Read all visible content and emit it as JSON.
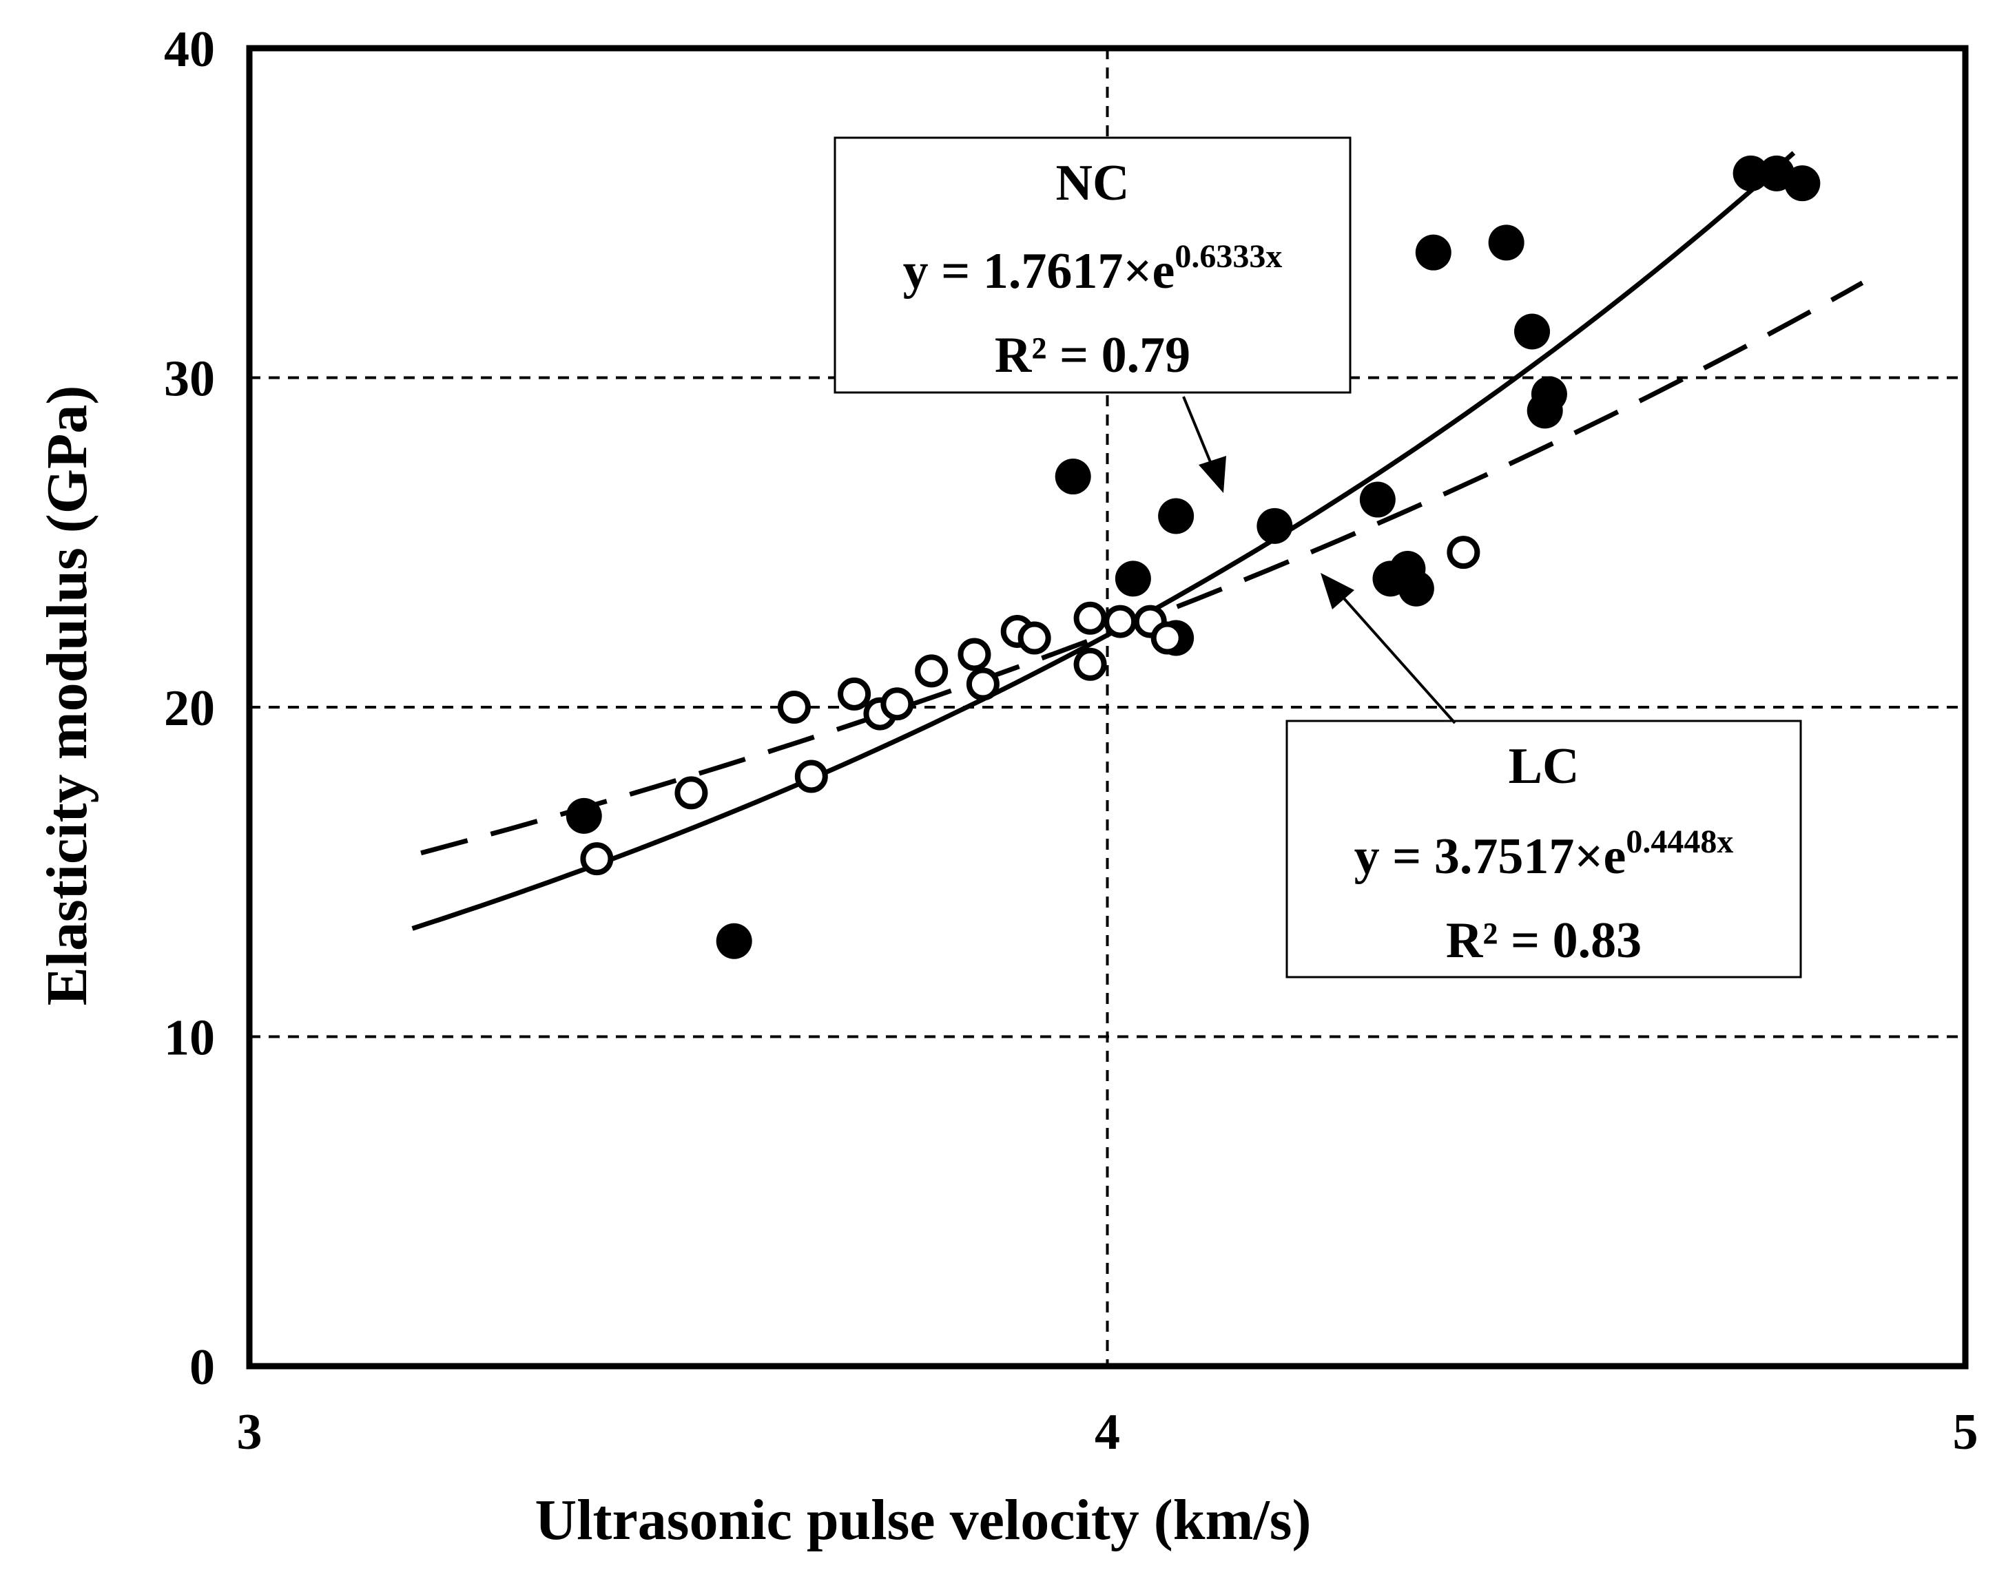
{
  "chart_data": {
    "type": "scatter",
    "xlabel": "Ultrasonic pulse velocity (km/s)",
    "ylabel": "Elasticity modulus (GPa)",
    "xlim": [
      3,
      5
    ],
    "ylim": [
      0,
      40
    ],
    "xticks": [
      3,
      4,
      5
    ],
    "yticks": [
      0,
      10,
      20,
      30,
      40
    ],
    "xtick_labels": [
      "3",
      "4",
      "5"
    ],
    "ytick_labels": [
      "0",
      "10",
      "20",
      "30",
      "40"
    ],
    "grid": "dashed at x=4 and y=10, 20, 30",
    "series": [
      {
        "name": "NC",
        "marker": "filled-circle",
        "points": [
          [
            3.39,
            16.7
          ],
          [
            3.565,
            12.9
          ],
          [
            3.96,
            27.0
          ],
          [
            4.03,
            23.9
          ],
          [
            4.08,
            25.8
          ],
          [
            4.08,
            22.1
          ],
          [
            4.195,
            25.5
          ],
          [
            4.315,
            26.3
          ],
          [
            4.33,
            23.9
          ],
          [
            4.35,
            24.2
          ],
          [
            4.36,
            23.6
          ],
          [
            4.38,
            33.8
          ],
          [
            4.465,
            34.1
          ],
          [
            4.495,
            31.4
          ],
          [
            4.51,
            29.0
          ],
          [
            4.515,
            29.5
          ],
          [
            4.75,
            36.2
          ],
          [
            4.78,
            36.2
          ],
          [
            4.81,
            35.9
          ]
        ],
        "fit": {
          "style": "solid",
          "a": 1.7617,
          "b": 0.6333,
          "x_range": [
            3.19,
            4.8
          ],
          "label_title": "NC",
          "label_eq_prefix": "y = 1.7617×e",
          "label_eq_exp": "0.6333x",
          "label_r2": "R² = 0.79"
        }
      },
      {
        "name": "LC",
        "marker": "open-circle",
        "points": [
          [
            3.405,
            15.4
          ],
          [
            3.515,
            17.4
          ],
          [
            3.635,
            20.0
          ],
          [
            3.655,
            17.9
          ],
          [
            3.705,
            20.4
          ],
          [
            3.735,
            19.8
          ],
          [
            3.755,
            20.1
          ],
          [
            3.795,
            21.1
          ],
          [
            3.845,
            21.6
          ],
          [
            3.855,
            20.7
          ],
          [
            3.895,
            22.3
          ],
          [
            3.915,
            22.1
          ],
          [
            3.98,
            21.3
          ],
          [
            3.98,
            22.7
          ],
          [
            4.015,
            22.6
          ],
          [
            4.05,
            22.6
          ],
          [
            4.07,
            22.1
          ],
          [
            4.415,
            24.7
          ]
        ],
        "fit": {
          "style": "dashed",
          "a": 3.7517,
          "b": 0.4448,
          "x_range": [
            3.2,
            4.88
          ],
          "label_title": "LC",
          "label_eq_prefix": "y = 3.7517×e",
          "label_eq_exp": "0.4448x",
          "label_r2": "R² = 0.83"
        }
      }
    ]
  }
}
